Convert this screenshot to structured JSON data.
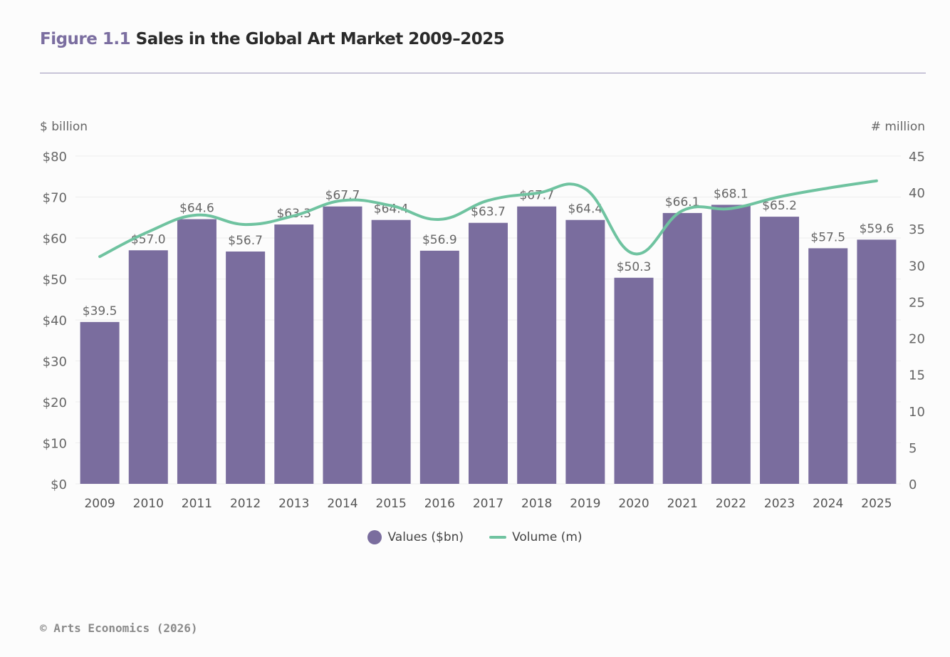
{
  "title": {
    "figure": "Figure 1.1",
    "text": "Sales in the Global Art Market 2009–2025"
  },
  "footer": "© Arts Economics (2026)",
  "colors": {
    "bars": "#7a6d9e",
    "line": "#6fc3a0",
    "title_accent": "#7b6ea0"
  },
  "chart_data": {
    "type": "bar",
    "categories": [
      "2009",
      "2010",
      "2011",
      "2012",
      "2013",
      "2014",
      "2015",
      "2016",
      "2017",
      "2018",
      "2019",
      "2020",
      "2021",
      "2022",
      "2023",
      "2024",
      "2025"
    ],
    "series": [
      {
        "name": "Values ($bn)",
        "type": "bar",
        "axis": "left",
        "values": [
          39.5,
          57.0,
          64.6,
          56.7,
          63.3,
          67.7,
          64.4,
          56.9,
          63.7,
          67.7,
          64.4,
          50.3,
          66.1,
          68.1,
          65.2,
          57.5,
          59.6
        ],
        "labels": [
          "$39.5",
          "$57.0",
          "$64.6",
          "$56.7",
          "$63.3",
          "$67.7",
          "$64.4",
          "$56.9",
          "$63.7",
          "$67.7",
          "$64.4",
          "$50.3",
          "$66.1",
          "$68.1",
          "$65.2",
          "$57.5",
          "$59.6"
        ]
      },
      {
        "name": "Volume (m)",
        "type": "line",
        "axis": "right",
        "values": [
          31.2,
          34.6,
          36.9,
          35.6,
          36.8,
          38.9,
          38.2,
          36.3,
          38.9,
          39.9,
          40.5,
          31.6,
          37.5,
          37.8,
          39.4,
          40.6,
          41.6
        ]
      }
    ],
    "ylabel_left": "$ billion",
    "ylabel_right": "# million",
    "ylim_left": [
      0,
      80
    ],
    "ylim_right": [
      0,
      45
    ],
    "yticks_left": [
      "$0",
      "$10",
      "$20",
      "$30",
      "$40",
      "$50",
      "$60",
      "$70",
      "$80"
    ],
    "yticks_right": [
      "0",
      "5",
      "10",
      "15",
      "20",
      "25",
      "30",
      "35",
      "40",
      "45"
    ],
    "grid": true,
    "legend": "bottom-center"
  }
}
